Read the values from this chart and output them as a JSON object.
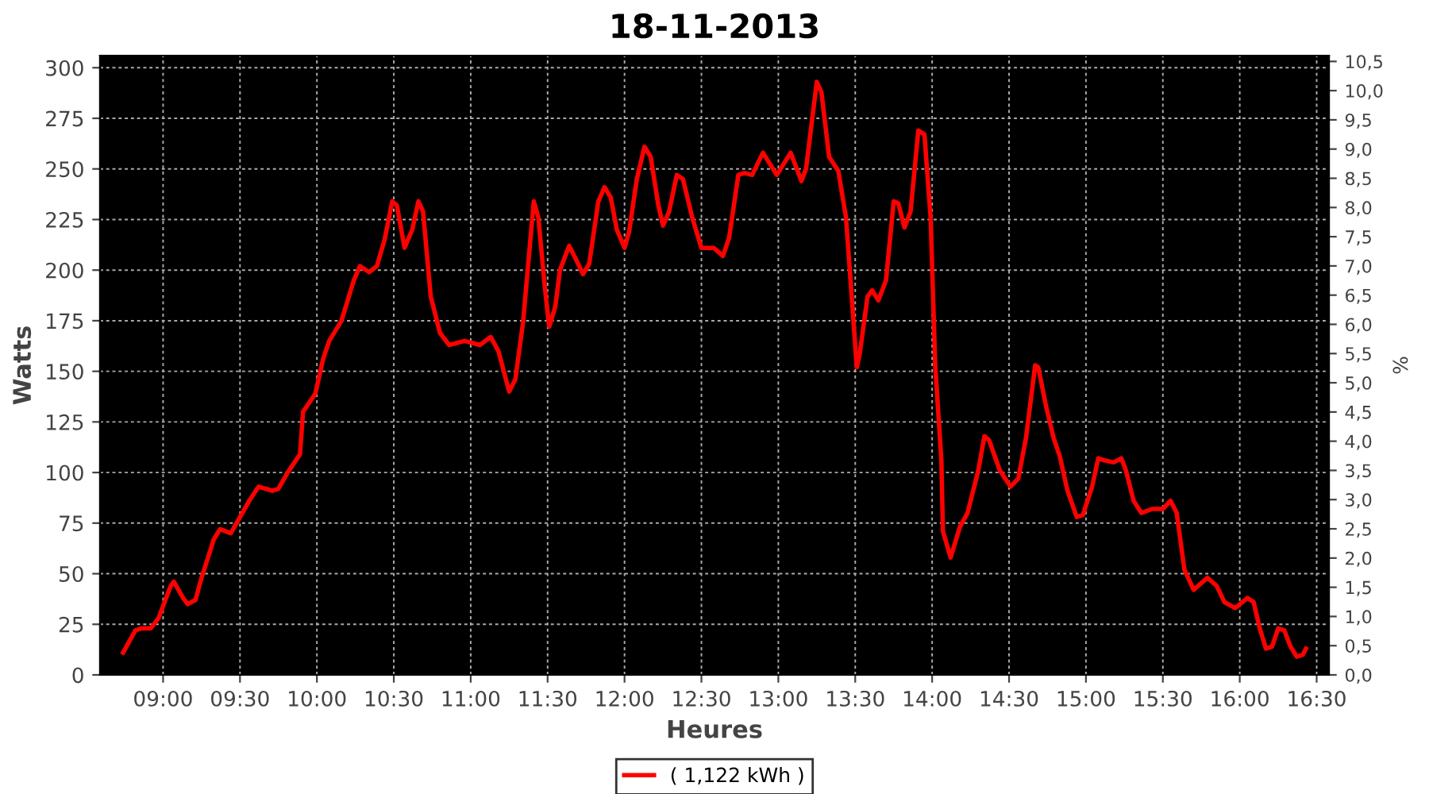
{
  "chart_data": {
    "type": "line",
    "title": "18-11-2013",
    "xlabel": "Heures",
    "ylabel": "Watts",
    "y2label": "%",
    "xlim": [
      8.59,
      16.58
    ],
    "ylim": [
      0,
      306
    ],
    "y2lim": [
      0,
      10.6
    ],
    "xticks": [
      {
        "value": 9.0,
        "label": "09:00"
      },
      {
        "value": 9.5,
        "label": "09:30"
      },
      {
        "value": 10.0,
        "label": "10:00"
      },
      {
        "value": 10.5,
        "label": "10:30"
      },
      {
        "value": 11.0,
        "label": "11:00"
      },
      {
        "value": 11.5,
        "label": "11:30"
      },
      {
        "value": 12.0,
        "label": "12:00"
      },
      {
        "value": 12.5,
        "label": "12:30"
      },
      {
        "value": 13.0,
        "label": "13:00"
      },
      {
        "value": 13.5,
        "label": "13:30"
      },
      {
        "value": 14.0,
        "label": "14:00"
      },
      {
        "value": 14.5,
        "label": "14:30"
      },
      {
        "value": 15.0,
        "label": "15:00"
      },
      {
        "value": 15.5,
        "label": "15:30"
      },
      {
        "value": 16.0,
        "label": "16:00"
      },
      {
        "value": 16.5,
        "label": "16:30"
      }
    ],
    "yticks": [
      0,
      25,
      50,
      75,
      100,
      125,
      150,
      175,
      200,
      225,
      250,
      275,
      300
    ],
    "y2ticks": [
      {
        "value": 0,
        "label": "0,0"
      },
      {
        "value": 0.5,
        "label": "0,5"
      },
      {
        "value": 1,
        "label": "1,0"
      },
      {
        "value": 1.5,
        "label": "1,5"
      },
      {
        "value": 2,
        "label": "2,0"
      },
      {
        "value": 2.5,
        "label": "2,5"
      },
      {
        "value": 3,
        "label": "3,0"
      },
      {
        "value": 3.5,
        "label": "3,5"
      },
      {
        "value": 4,
        "label": "4,0"
      },
      {
        "value": 4.5,
        "label": "4,5"
      },
      {
        "value": 5,
        "label": "5,0"
      },
      {
        "value": 5.5,
        "label": "5,5"
      },
      {
        "value": 6,
        "label": "6,0"
      },
      {
        "value": 6.5,
        "label": "6,5"
      },
      {
        "value": 7,
        "label": "7,0"
      },
      {
        "value": 7.5,
        "label": "7,5"
      },
      {
        "value": 8,
        "label": "8,0"
      },
      {
        "value": 8.5,
        "label": "8,5"
      },
      {
        "value": 9,
        "label": "9,0"
      },
      {
        "value": 9.5,
        "label": "9,5"
      },
      {
        "value": 10,
        "label": "10,0"
      },
      {
        "value": 10.5,
        "label": "10,5"
      }
    ],
    "grid": true,
    "legend": "bottom",
    "marker": "none",
    "line_style": "solid",
    "series": [
      {
        "name": "( 1,122 kWh )",
        "color": "#ff0000",
        "x": [
          8.74,
          8.82,
          8.86,
          8.92,
          8.97,
          9.05,
          9.07,
          9.13,
          9.16,
          9.21,
          9.25,
          9.33,
          9.37,
          9.44,
          9.5,
          9.56,
          9.62,
          9.71,
          9.75,
          9.81,
          9.89,
          9.91,
          9.99,
          10.04,
          10.08,
          10.16,
          10.24,
          10.28,
          10.34,
          10.39,
          10.44,
          10.49,
          10.52,
          10.57,
          10.62,
          10.66,
          10.69,
          10.74,
          10.8,
          10.86,
          10.96,
          11.06,
          11.13,
          11.18,
          11.25,
          11.29,
          11.34,
          11.41,
          11.44,
          11.48,
          11.51,
          11.55,
          11.58,
          11.64,
          11.68,
          11.73,
          11.77,
          11.83,
          11.87,
          11.91,
          11.95,
          12.0,
          12.03,
          12.08,
          12.13,
          12.17,
          12.22,
          12.25,
          12.29,
          12.34,
          12.38,
          12.44,
          12.5,
          12.58,
          12.64,
          12.68,
          12.74,
          12.78,
          12.83,
          12.9,
          12.99,
          13.08,
          13.15,
          13.18,
          13.25,
          13.28,
          13.33,
          13.39,
          13.44,
          13.51,
          13.53,
          13.58,
          13.61,
          13.65,
          13.7,
          13.75,
          13.78,
          13.82,
          13.86,
          13.91,
          13.95,
          13.99,
          14.02,
          14.06,
          14.07,
          14.12,
          14.18,
          14.23,
          14.3,
          14.34,
          14.37,
          14.44,
          14.51,
          14.56,
          14.61,
          14.67,
          14.69,
          14.74,
          14.79,
          14.83,
          14.88,
          14.94,
          14.98,
          15.04,
          15.08,
          15.12,
          15.18,
          15.23,
          15.26,
          15.31,
          15.36,
          15.43,
          15.5,
          15.55,
          15.59,
          15.64,
          15.7,
          15.79,
          15.85,
          15.9,
          15.97,
          16.05,
          16.09,
          16.13,
          16.17,
          16.21,
          16.25,
          16.29,
          16.33,
          16.37,
          16.41,
          16.43
        ],
        "values": [
          11,
          22,
          23,
          23,
          28,
          44,
          46,
          38,
          35,
          37,
          48,
          67,
          72,
          70,
          78,
          86,
          93,
          91,
          92,
          100,
          109,
          130,
          139,
          156,
          165,
          175,
          195,
          202,
          199,
          202,
          215,
          234,
          232,
          211,
          220,
          234,
          229,
          187,
          169,
          163,
          165,
          163,
          167,
          160,
          140,
          146,
          174,
          234,
          226,
          193,
          172,
          182,
          200,
          212,
          206,
          198,
          203,
          234,
          241,
          236,
          220,
          211,
          219,
          245,
          261,
          256,
          232,
          222,
          229,
          247,
          245,
          226,
          211,
          211,
          207,
          216,
          247,
          248,
          247,
          258,
          247,
          258,
          244,
          250,
          293,
          288,
          256,
          249,
          226,
          152,
          159,
          187,
          190,
          185,
          195,
          234,
          233,
          221,
          229,
          269,
          267,
          226,
          153,
          106,
          71,
          58,
          73,
          80,
          101,
          118,
          116,
          101,
          93,
          97,
          117,
          153,
          152,
          133,
          117,
          108,
          91,
          78,
          79,
          93,
          107,
          106,
          105,
          107,
          101,
          86,
          80,
          82,
          82,
          86,
          80,
          52,
          42,
          48,
          44,
          36,
          33,
          38,
          36,
          23,
          13,
          14,
          23,
          22,
          14,
          9,
          10,
          13
        ]
      }
    ]
  }
}
